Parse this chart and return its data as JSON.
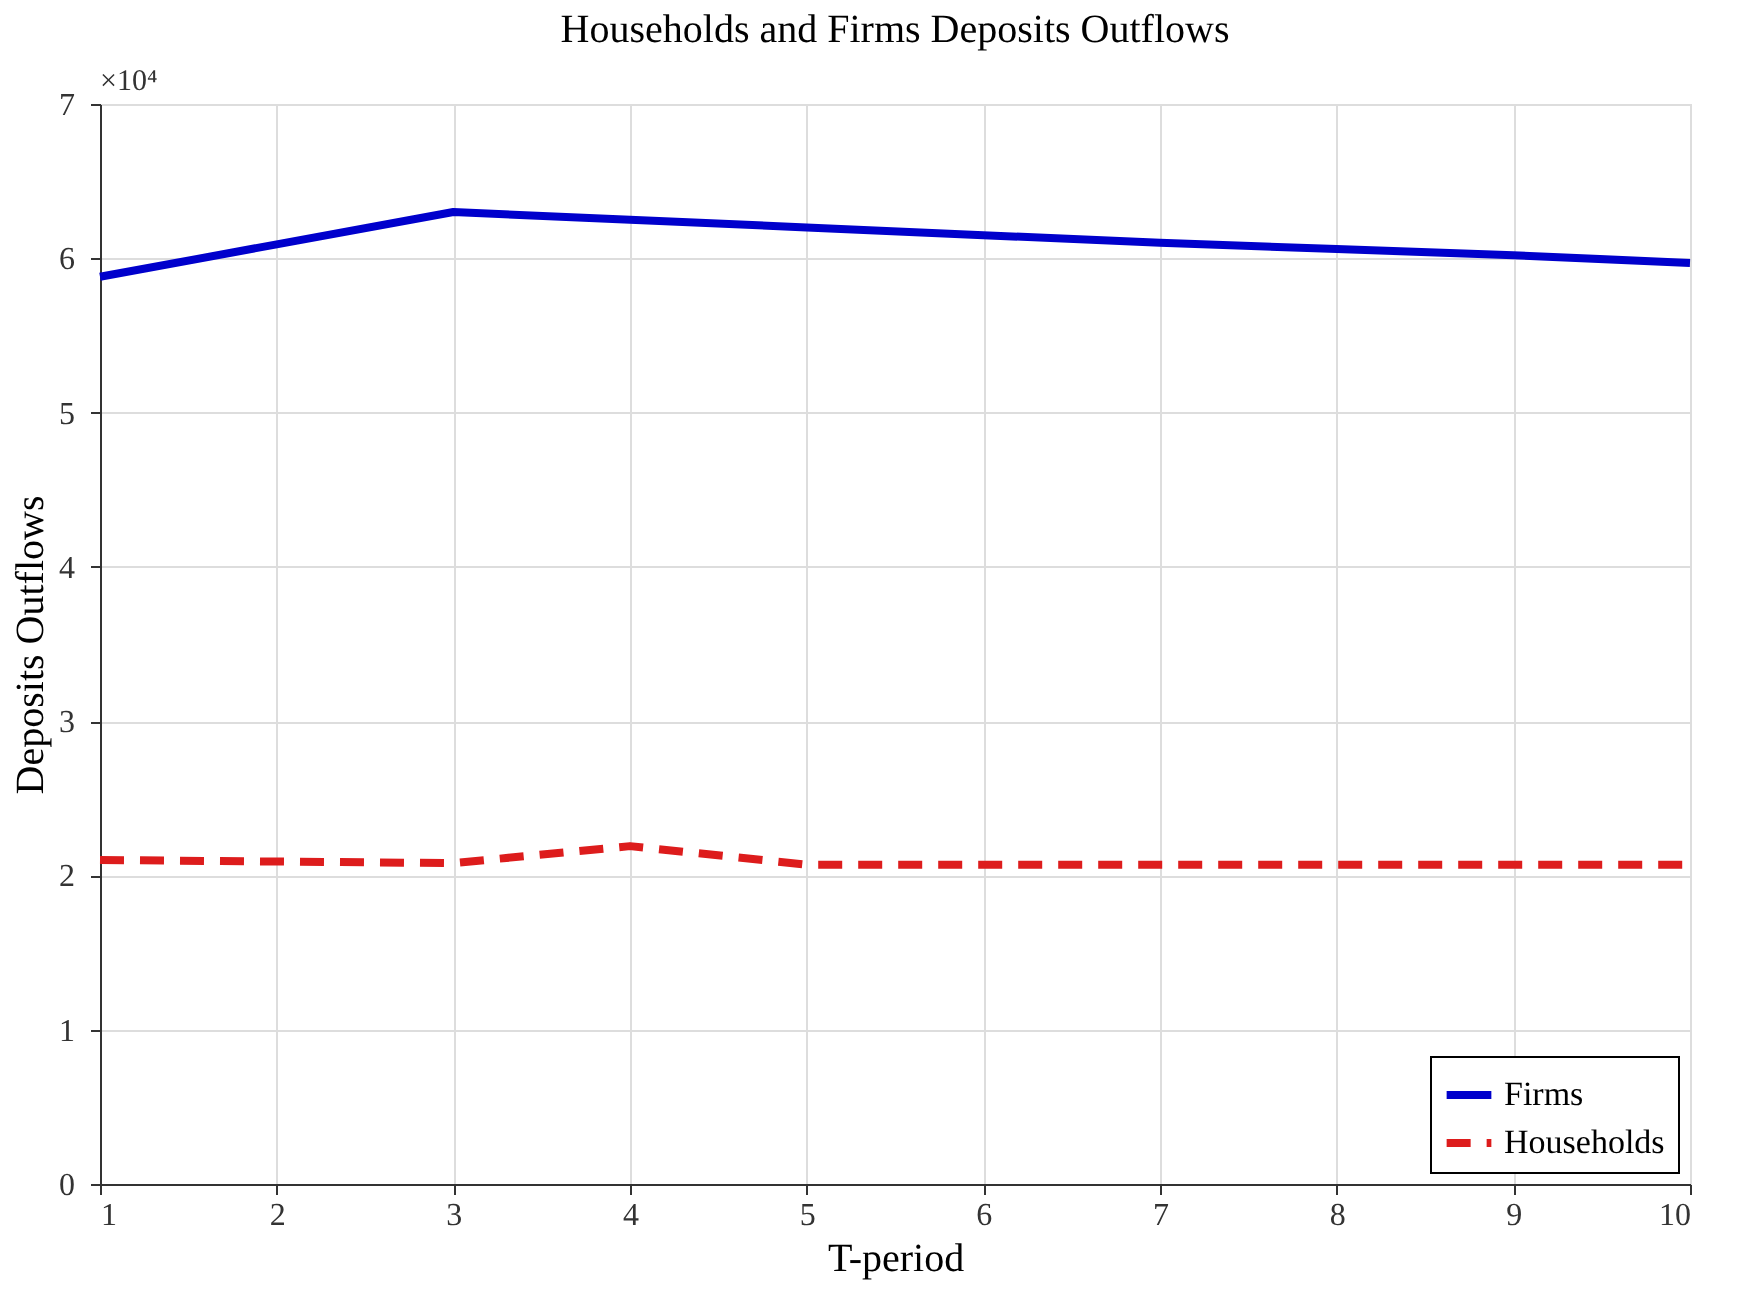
{
  "chart_data": {
    "type": "line",
    "title": "Households and Firms Deposits Outflows",
    "xlabel": "T-period",
    "ylabel": "Deposits Outflows",
    "annotations": [
      "×10⁴"
    ],
    "x": [
      1,
      2,
      3,
      4,
      5,
      6,
      7,
      8,
      9,
      10
    ],
    "series": [
      {
        "name": "Firms",
        "color": "#0000cc",
        "line_style": "solid",
        "values": [
          5.88,
          6.09,
          6.3,
          6.25,
          6.2,
          6.15,
          6.1,
          6.06,
          6.02,
          5.97
        ]
      },
      {
        "name": "Households",
        "color": "#dd1c1c",
        "line_style": "dashed",
        "values": [
          2.1,
          2.09,
          2.08,
          2.19,
          2.07,
          2.07,
          2.07,
          2.07,
          2.07,
          2.07
        ]
      }
    ],
    "xlim": [
      1,
      10
    ],
    "xticks": [
      1,
      2,
      3,
      4,
      5,
      6,
      7,
      8,
      9,
      10
    ],
    "ylim": [
      0,
      7
    ],
    "yticks": [
      0,
      1,
      2,
      3,
      4,
      5,
      6,
      7
    ],
    "grid": true,
    "legend": "bottom right",
    "marker": "none"
  }
}
